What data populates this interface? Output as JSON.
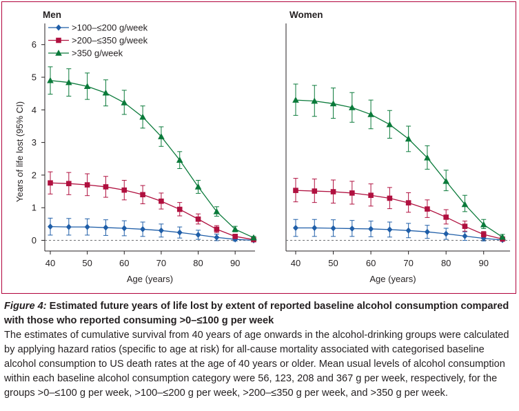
{
  "caption": {
    "label": "Figure 4:",
    "title": " Estimated future years of life lost by extent of reported baseline alcohol consumption compared with those who reported consuming >0–≤100 g per week",
    "body": "The estimates of cumulative survival from 40 years of age onwards in the alcohol-drinking groups were calculated by applying hazard ratios (specific to age at risk) for all-cause mortality associated with categorised baseline alcohol consumption to US death rates at the age of 40 years or older. Mean usual levels of alcohol consumption within each baseline alcohol consumption category were 56, 123, 208 and 367 g per week, respectively, for the groups >0–≤100 g per week, >100–≤200 g per week, >200–≤350 g per week, and >350 g per week."
  },
  "colors": {
    "frame": "#b0003a",
    "blue": "#1f5ea8",
    "red": "#b0103f",
    "green": "#0a7a3a",
    "axis": "#231f20"
  },
  "chart_data": [
    {
      "type": "line",
      "title": "Men",
      "xlabel": "Age (years)",
      "ylabel": "Years of life lost (95% CI)",
      "xlim": [
        40,
        95
      ],
      "ylim": [
        -0.25,
        6.5
      ],
      "xticks": [
        40,
        50,
        60,
        70,
        80,
        90
      ],
      "yticks": [
        0,
        1,
        2,
        3,
        4,
        5,
        6
      ],
      "reference_line": 0,
      "x": [
        40,
        45,
        50,
        55,
        60,
        65,
        70,
        75,
        80,
        85,
        90,
        95
      ],
      "series": [
        {
          "name": ">100–≤200 g/week",
          "marker": "diamond",
          "color": "#1f5ea8",
          "values": [
            0.42,
            0.41,
            0.41,
            0.39,
            0.37,
            0.34,
            0.3,
            0.24,
            0.17,
            0.09,
            0.03,
            0.0
          ],
          "lower": [
            0.16,
            0.16,
            0.16,
            0.15,
            0.14,
            0.12,
            0.1,
            0.07,
            0.03,
            -0.01,
            -0.02,
            -0.02
          ],
          "upper": [
            0.68,
            0.67,
            0.66,
            0.63,
            0.6,
            0.56,
            0.5,
            0.41,
            0.31,
            0.19,
            0.08,
            0.03
          ]
        },
        {
          "name": ">200–≤350 g/week",
          "marker": "square",
          "color": "#b0103f",
          "values": [
            1.76,
            1.74,
            1.7,
            1.64,
            1.54,
            1.4,
            1.2,
            0.95,
            0.65,
            0.34,
            0.12,
            0.02
          ],
          "lower": [
            1.42,
            1.4,
            1.37,
            1.32,
            1.24,
            1.12,
            0.96,
            0.75,
            0.5,
            0.24,
            0.06,
            -0.01
          ],
          "upper": [
            2.1,
            2.08,
            2.04,
            1.96,
            1.84,
            1.68,
            1.45,
            1.16,
            0.81,
            0.45,
            0.19,
            0.05
          ]
        },
        {
          "name": ">350 g/week",
          "marker": "triangle",
          "color": "#0a7a3a",
          "values": [
            4.9,
            4.84,
            4.72,
            4.52,
            4.22,
            3.78,
            3.18,
            2.46,
            1.64,
            0.88,
            0.34,
            0.08
          ],
          "lower": [
            4.48,
            4.42,
            4.32,
            4.12,
            3.86,
            3.44,
            2.88,
            2.2,
            1.44,
            0.74,
            0.26,
            0.04
          ],
          "upper": [
            5.32,
            5.26,
            5.13,
            4.92,
            4.6,
            4.12,
            3.48,
            2.72,
            1.84,
            1.03,
            0.43,
            0.12
          ]
        }
      ],
      "legend": "top-left"
    },
    {
      "type": "line",
      "title": "Women",
      "xlabel": "Age (years)",
      "ylabel": "",
      "xlim": [
        40,
        95
      ],
      "ylim": [
        -0.25,
        6.5
      ],
      "xticks": [
        40,
        50,
        60,
        70,
        80,
        90
      ],
      "yticks": [],
      "reference_line": 0,
      "x": [
        40,
        45,
        50,
        55,
        60,
        65,
        70,
        75,
        80,
        85,
        90,
        95
      ],
      "series": [
        {
          "name": ">100–≤200 g/week",
          "marker": "diamond",
          "color": "#1f5ea8",
          "values": [
            0.38,
            0.38,
            0.37,
            0.36,
            0.35,
            0.33,
            0.3,
            0.26,
            0.2,
            0.13,
            0.06,
            0.01
          ],
          "lower": [
            0.12,
            0.12,
            0.12,
            0.12,
            0.11,
            0.1,
            0.08,
            0.06,
            0.03,
            0.0,
            -0.02,
            -0.02
          ],
          "upper": [
            0.64,
            0.64,
            0.63,
            0.61,
            0.59,
            0.56,
            0.52,
            0.46,
            0.37,
            0.26,
            0.14,
            0.04
          ]
        },
        {
          "name": ">200–≤350 g/week",
          "marker": "square",
          "color": "#b0103f",
          "values": [
            1.53,
            1.51,
            1.49,
            1.45,
            1.38,
            1.29,
            1.15,
            0.96,
            0.71,
            0.43,
            0.18,
            0.04
          ],
          "lower": [
            1.18,
            1.16,
            1.14,
            1.11,
            1.05,
            0.97,
            0.86,
            0.7,
            0.5,
            0.28,
            0.1,
            0.01
          ],
          "upper": [
            1.9,
            1.88,
            1.85,
            1.81,
            1.73,
            1.62,
            1.46,
            1.24,
            0.94,
            0.59,
            0.27,
            0.08
          ]
        },
        {
          "name": ">350 g/week",
          "marker": "triangle",
          "color": "#0a7a3a",
          "values": [
            4.3,
            4.27,
            4.19,
            4.07,
            3.86,
            3.55,
            3.11,
            2.53,
            1.81,
            1.1,
            0.48,
            0.1
          ],
          "lower": [
            3.83,
            3.8,
            3.74,
            3.62,
            3.42,
            3.13,
            2.72,
            2.18,
            1.52,
            0.88,
            0.36,
            0.06
          ],
          "upper": [
            4.79,
            4.75,
            4.67,
            4.53,
            4.3,
            3.98,
            3.5,
            2.9,
            2.15,
            1.38,
            0.64,
            0.18
          ]
        }
      ],
      "legend": "none"
    }
  ]
}
